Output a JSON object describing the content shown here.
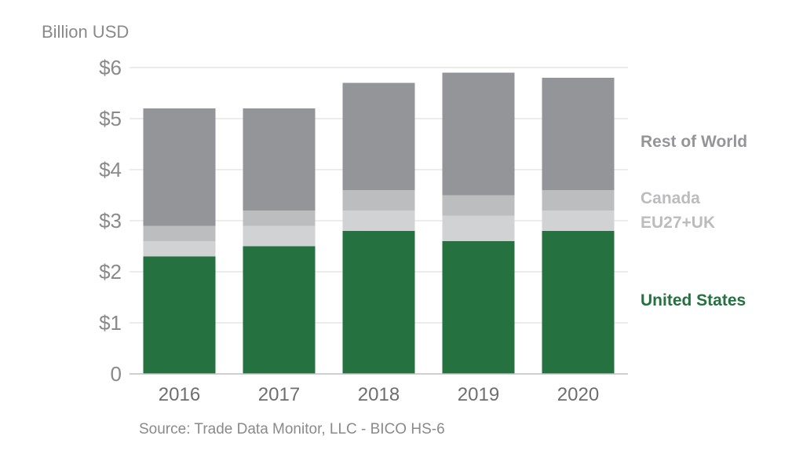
{
  "header": {
    "y_unit": "Billion USD"
  },
  "footer": {
    "source": "Source: Trade Data Monitor, LLC - BICO HS-6"
  },
  "chart_data": {
    "type": "bar",
    "stacked": true,
    "categories": [
      "2016",
      "2017",
      "2018",
      "2019",
      "2020"
    ],
    "series": [
      {
        "name": "United States",
        "values": [
          2.3,
          2.5,
          2.8,
          2.6,
          2.8
        ],
        "color": "#257140",
        "label_color": "#257140"
      },
      {
        "name": "EU27+UK",
        "values": [
          0.3,
          0.4,
          0.4,
          0.5,
          0.4
        ],
        "color": "#d1d2d4",
        "label_color": "#bcbcbe"
      },
      {
        "name": "Canada",
        "values": [
          0.3,
          0.3,
          0.4,
          0.4,
          0.4
        ],
        "color": "#bcbdbf",
        "label_color": "#bcbcbe"
      },
      {
        "name": "Rest of World",
        "values": [
          2.3,
          2.0,
          2.1,
          2.4,
          2.2
        ],
        "color": "#949598",
        "label_color": "#949598"
      }
    ],
    "ylabel": "Billion USD",
    "ylim": [
      0,
      6
    ],
    "y_ticks": [
      0,
      1,
      2,
      3,
      4,
      5,
      6
    ],
    "y_tick_labels": [
      "0",
      "$1",
      "$2",
      "$3",
      "$4",
      "$5",
      "$6"
    ],
    "grid": true,
    "legend": "right"
  }
}
